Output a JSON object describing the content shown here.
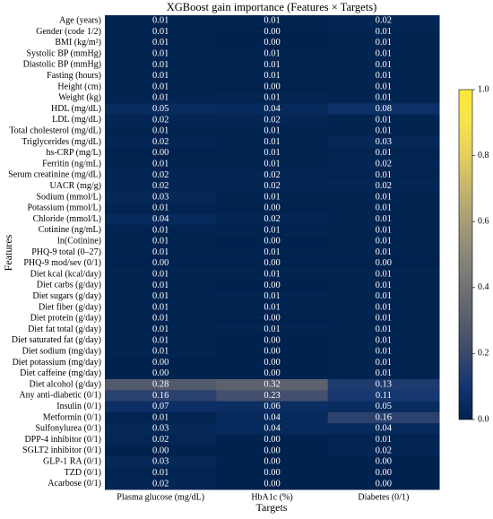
{
  "chart_data": {
    "type": "heatmap",
    "title": "XGBoost gain importance (Features × Targets)",
    "x_label": "Targets",
    "y_label": "Features",
    "colormap": "cividis",
    "targets": [
      "Plasma glucose (mg/dL)",
      "HbA1c (%)",
      "Diabetes (0/1)"
    ],
    "features": [
      "Age (years)",
      "Gender (code 1/2)",
      "BMI (kg/m²)",
      "Systolic BP (mmHg)",
      "Diastolic BP (mmHg)",
      "Fasting (hours)",
      "Height (cm)",
      "Weight (kg)",
      "HDL (mg/dL)",
      "LDL (mg/dL)",
      "Total cholesterol (mg/dL)",
      "Triglycerides (mg/dL)",
      "hs-CRP (mg/L)",
      "Ferritin (ng/mL)",
      "Serum creatinine (mg/dL)",
      "UACR (mg/g)",
      "Sodium (mmol/L)",
      "Potassium (mmol/L)",
      "Chloride (mmol/L)",
      "Cotinine (ng/mL)",
      "ln(Cotinine)",
      "PHQ-9 total (0–27)",
      "PHQ-9 mod/sev (0/1)",
      "Diet kcal (kcal/day)",
      "Diet carbs (g/day)",
      "Diet sugars (g/day)",
      "Diet fiber (g/day)",
      "Diet protein (g/day)",
      "Diet fat total (g/day)",
      "Diet saturated fat (g/day)",
      "Diet sodium (mg/day)",
      "Diet potassium (mg/day)",
      "Diet caffeine (mg/day)",
      "Diet alcohol (g/day)",
      "Any anti-diabetic (0/1)",
      "Insulin (0/1)",
      "Metformin (0/1)",
      "Sulfonylurea (0/1)",
      "DPP-4 inhibitor (0/1)",
      "SGLT2 inhibitor (0/1)",
      "GLP-1 RA (0/1)",
      "TZD (0/1)",
      "Acarbose (0/1)"
    ],
    "values": [
      [
        0.01,
        0.01,
        0.02
      ],
      [
        0.01,
        0,
        0.01
      ],
      [
        0.01,
        0,
        0.01
      ],
      [
        0.01,
        0.01,
        0.01
      ],
      [
        0.01,
        0.01,
        0.01
      ],
      [
        0.01,
        0.01,
        0.01
      ],
      [
        0.01,
        0,
        0.01
      ],
      [
        0.01,
        0.01,
        0.01
      ],
      [
        0.05,
        0.04,
        0.08
      ],
      [
        0.02,
        0.02,
        0.01
      ],
      [
        0.01,
        0.01,
        0.01
      ],
      [
        0.02,
        0.01,
        0.03
      ],
      [
        0,
        0.01,
        0.01
      ],
      [
        0.01,
        0.01,
        0.02
      ],
      [
        0.02,
        0.02,
        0.01
      ],
      [
        0.02,
        0.02,
        0.02
      ],
      [
        0.03,
        0.01,
        0.01
      ],
      [
        0.01,
        0,
        0.01
      ],
      [
        0.04,
        0.02,
        0.01
      ],
      [
        0.01,
        0.01,
        0.01
      ],
      [
        0.01,
        0,
        0.01
      ],
      [
        0.01,
        0.01,
        0.01
      ],
      [
        0,
        0,
        0
      ],
      [
        0.01,
        0.01,
        0.01
      ],
      [
        0.01,
        0,
        0.01
      ],
      [
        0.01,
        0.01,
        0.01
      ],
      [
        0.01,
        0.01,
        0.01
      ],
      [
        0.01,
        0,
        0.01
      ],
      [
        0.01,
        0.01,
        0.01
      ],
      [
        0.01,
        0,
        0.01
      ],
      [
        0.01,
        0,
        0.01
      ],
      [
        0,
        0,
        0.01
      ],
      [
        0,
        0,
        0.01
      ],
      [
        0.28,
        0.32,
        0.13
      ],
      [
        0.16,
        0.23,
        0.11
      ],
      [
        0.07,
        0.06,
        0.05
      ],
      [
        0.01,
        0.04,
        0.16
      ],
      [
        0.03,
        0.04,
        0.04
      ],
      [
        0.02,
        0,
        0.01
      ],
      [
        0,
        0,
        0.02
      ],
      [
        0.03,
        0,
        0
      ],
      [
        0.01,
        0,
        0
      ],
      [
        0.02,
        0,
        0
      ]
    ],
    "value_labels": [
      [
        "0.01",
        "0.01",
        "0.02"
      ],
      [
        "0.01",
        "0.00",
        "0.01"
      ],
      [
        "0.01",
        "0.00",
        "0.01"
      ],
      [
        "0.01",
        "0.01",
        "0.01"
      ],
      [
        "0.01",
        "0.01",
        "0.01"
      ],
      [
        "0.01",
        "0.01",
        "0.01"
      ],
      [
        "0.01",
        "0.00",
        "0.01"
      ],
      [
        "0.01",
        "0.01",
        "0.01"
      ],
      [
        "0.05",
        "0.04",
        "0.08"
      ],
      [
        "0.02",
        "0.02",
        "0.01"
      ],
      [
        "0.01",
        "0.01",
        "0.01"
      ],
      [
        "0.02",
        "0.01",
        "0.03"
      ],
      [
        "0.00",
        "0.01",
        "0.01"
      ],
      [
        "0.01",
        "0.01",
        "0.02"
      ],
      [
        "0.02",
        "0.02",
        "0.01"
      ],
      [
        "0.02",
        "0.02",
        "0.02"
      ],
      [
        "0.03",
        "0.01",
        "0.01"
      ],
      [
        "0.01",
        "0.00",
        "0.01"
      ],
      [
        "0.04",
        "0.02",
        "0.01"
      ],
      [
        "0.01",
        "0.01",
        "0.01"
      ],
      [
        "0.01",
        "0.00",
        "0.01"
      ],
      [
        "0.01",
        "0.01",
        "0.01"
      ],
      [
        "0.00",
        "0.00",
        "0.00"
      ],
      [
        "0.01",
        "0.01",
        "0.01"
      ],
      [
        "0.01",
        "0.00",
        "0.01"
      ],
      [
        "0.01",
        "0.01",
        "0.01"
      ],
      [
        "0.01",
        "0.01",
        "0.01"
      ],
      [
        "0.01",
        "0.00",
        "0.01"
      ],
      [
        "0.01",
        "0.01",
        "0.01"
      ],
      [
        "0.01",
        "0.00",
        "0.01"
      ],
      [
        "0.01",
        "0.00",
        "0.01"
      ],
      [
        "0.00",
        "0.00",
        "0.01"
      ],
      [
        "0.00",
        "0.00",
        "0.01"
      ],
      [
        "0.28",
        "0.32",
        "0.13"
      ],
      [
        "0.16",
        "0.23",
        "0.11"
      ],
      [
        "0.07",
        "0.06",
        "0.05"
      ],
      [
        "0.01",
        "0.04",
        "0.16"
      ],
      [
        "0.03",
        "0.04",
        "0.04"
      ],
      [
        "0.02",
        "0.00",
        "0.01"
      ],
      [
        "0.00",
        "0.00",
        "0.02"
      ],
      [
        "0.03",
        "0.00",
        "0.00"
      ],
      [
        "0.01",
        "0.00",
        "0.00"
      ],
      [
        "0.02",
        "0.00",
        "0.00"
      ]
    ],
    "clim": [
      0,
      1
    ],
    "cticks": [
      {
        "value": 0,
        "label": "0.0"
      },
      {
        "value": 0.2,
        "label": "0.2"
      },
      {
        "value": 0.4,
        "label": "0.4"
      },
      {
        "value": 0.6,
        "label": "0.6"
      },
      {
        "value": 0.8,
        "label": "0.8"
      },
      {
        "value": 1,
        "label": "1.0"
      }
    ]
  }
}
